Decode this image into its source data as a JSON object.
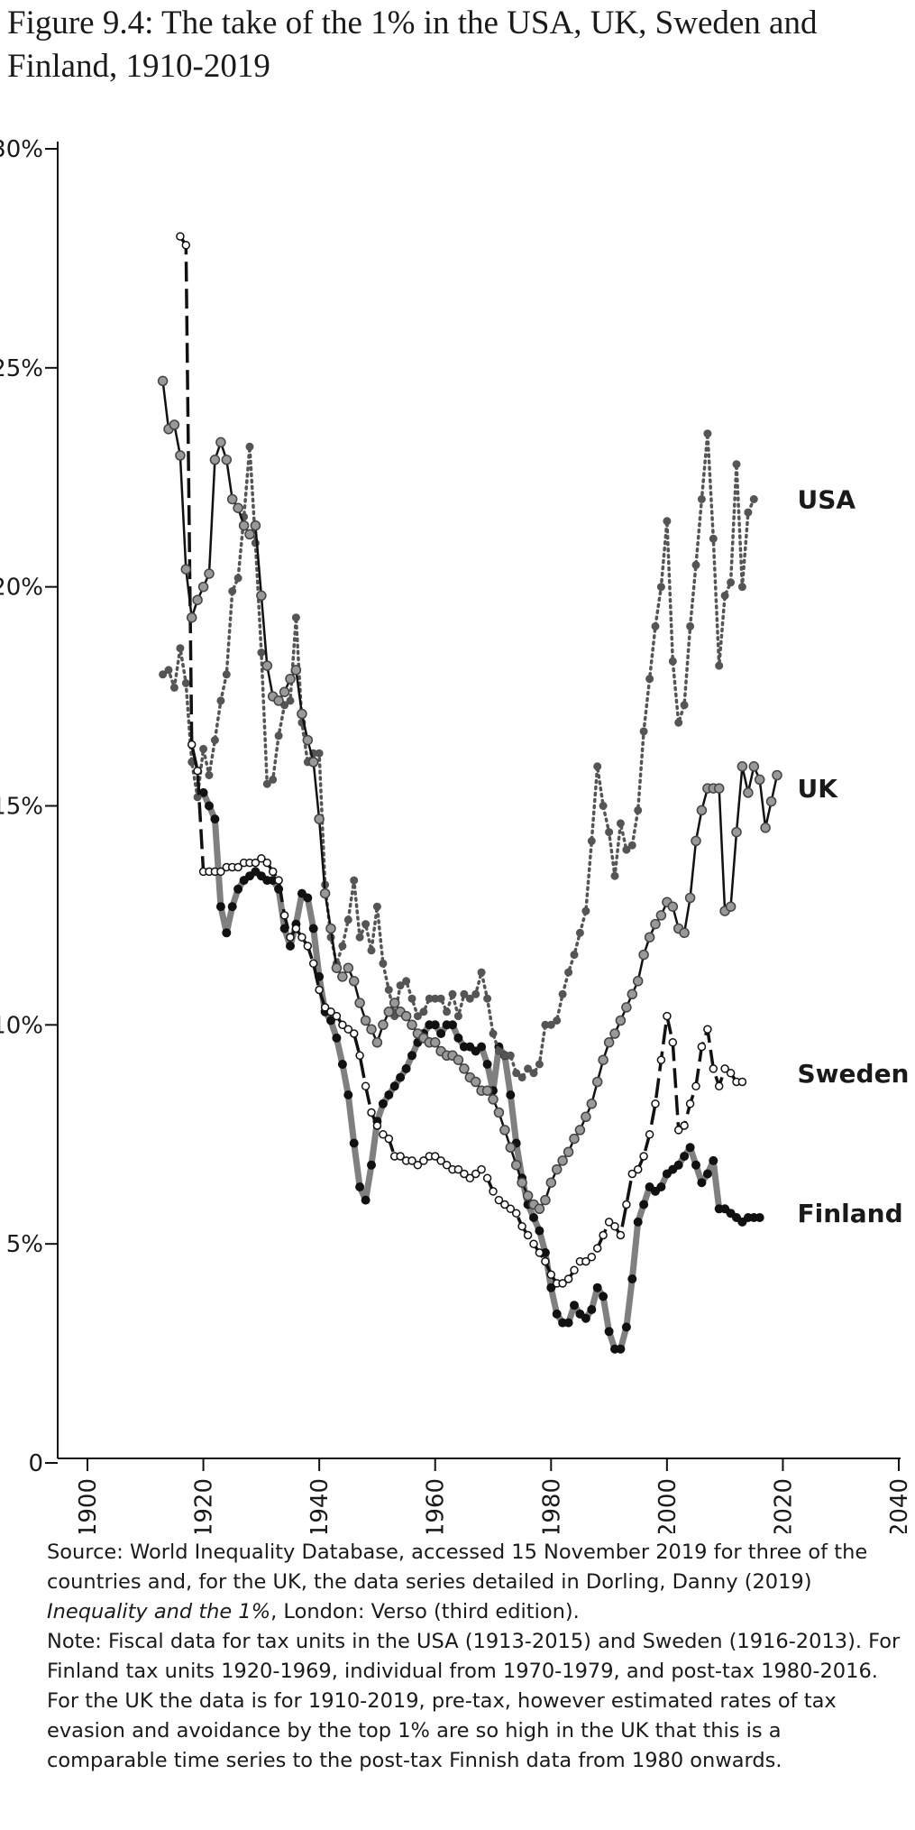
{
  "title": "Figure 9.4: The take of the 1% in the USA, UK, Sweden and Finland, 1910-2019",
  "notes": {
    "source_prefix": "Source: World Inequality Database, accessed 15 November 2019 for three of the countries and, for the UK, the data series detailed in Dorling, Danny (2019) ",
    "source_book": "Inequality and the 1%",
    "source_suffix": ", London: Verso (third edition).",
    "note": "Note: Fiscal data for tax units in the USA (1913-2015) and Sweden (1916-2013). For Finland tax units 1920-1969, individual from 1970-1979, and post-tax 1980-2016. For the UK the data is for 1910-2019, pre-tax, however estimated rates of tax evasion and avoidance by the top 1% are so high in the UK that this is a comparable time series to the post-tax Finnish data from 1980 onwards."
  },
  "chart_data": {
    "type": "line",
    "title": "",
    "xlabel": "",
    "ylabel": "",
    "xlim": [
      1900,
      2040
    ],
    "ylim": [
      0,
      30
    ],
    "x_ticks": [
      "1900",
      "1920",
      "1940",
      "1960",
      "1980",
      "2000",
      "2020",
      "2040"
    ],
    "y_ticks": [
      "0",
      "5%",
      "10%",
      "15%",
      "20%",
      "25%",
      "30%"
    ],
    "grid": false,
    "legend": "direct labels at line ends",
    "series": [
      {
        "name": "USA",
        "style": "dotted",
        "color": "#555555",
        "x": [
          1913,
          1914,
          1915,
          1916,
          1917,
          1918,
          1919,
          1920,
          1921,
          1922,
          1923,
          1924,
          1925,
          1926,
          1927,
          1928,
          1929,
          1930,
          1931,
          1932,
          1933,
          1934,
          1935,
          1936,
          1937,
          1938,
          1939,
          1940,
          1941,
          1942,
          1943,
          1944,
          1945,
          1946,
          1947,
          1948,
          1949,
          1950,
          1951,
          1952,
          1953,
          1954,
          1955,
          1956,
          1957,
          1958,
          1959,
          1960,
          1961,
          1962,
          1963,
          1964,
          1965,
          1966,
          1967,
          1968,
          1969,
          1970,
          1971,
          1972,
          1973,
          1974,
          1975,
          1976,
          1977,
          1978,
          1979,
          1980,
          1981,
          1982,
          1983,
          1984,
          1985,
          1986,
          1987,
          1988,
          1989,
          1990,
          1991,
          1992,
          1993,
          1994,
          1995,
          1996,
          1997,
          1998,
          1999,
          2000,
          2001,
          2002,
          2003,
          2004,
          2005,
          2006,
          2007,
          2008,
          2009,
          2010,
          2011,
          2012,
          2013,
          2014,
          2015
        ],
        "y": [
          18.0,
          18.1,
          17.7,
          18.6,
          17.8,
          16.0,
          15.2,
          16.3,
          15.7,
          16.5,
          17.4,
          18.0,
          19.9,
          20.2,
          21.6,
          23.2,
          21.0,
          18.5,
          15.5,
          15.6,
          16.6,
          17.3,
          17.4,
          19.3,
          16.9,
          16.0,
          16.2,
          16.2,
          13.2,
          12.0,
          11.4,
          11.8,
          12.4,
          13.3,
          12.0,
          12.3,
          11.7,
          12.7,
          11.4,
          10.8,
          10.2,
          10.9,
          11.0,
          10.6,
          10.2,
          10.3,
          10.6,
          10.6,
          10.6,
          10.3,
          10.7,
          10.2,
          10.7,
          10.6,
          10.7,
          11.2,
          10.6,
          9.8,
          9.4,
          9.3,
          9.3,
          8.9,
          8.8,
          9.0,
          8.9,
          9.1,
          10.0,
          10.0,
          10.1,
          10.7,
          11.2,
          11.6,
          12.1,
          12.6,
          14.2,
          15.9,
          15.0,
          14.4,
          13.4,
          14.6,
          14.0,
          14.1,
          14.9,
          16.7,
          17.9,
          19.1,
          20.0,
          21.5,
          18.3,
          16.9,
          17.3,
          19.1,
          20.5,
          22.0,
          23.5,
          21.1,
          18.2,
          19.8,
          20.1,
          22.8,
          20.0,
          21.7,
          22.0
        ]
      },
      {
        "name": "UK",
        "style": "solid",
        "color": "#111111",
        "x": [
          1913,
          1914,
          1915,
          1916,
          1917,
          1918,
          1919,
          1920,
          1921,
          1922,
          1923,
          1924,
          1925,
          1926,
          1927,
          1928,
          1929,
          1930,
          1931,
          1932,
          1933,
          1934,
          1935,
          1936,
          1937,
          1938,
          1939,
          1940,
          1941,
          1942,
          1943,
          1944,
          1945,
          1946,
          1947,
          1948,
          1949,
          1950,
          1951,
          1952,
          1953,
          1954,
          1955,
          1956,
          1957,
          1958,
          1959,
          1960,
          1961,
          1962,
          1963,
          1964,
          1965,
          1966,
          1967,
          1968,
          1969,
          1970,
          1971,
          1972,
          1973,
          1974,
          1975,
          1976,
          1977,
          1978,
          1979,
          1980,
          1981,
          1982,
          1983,
          1984,
          1985,
          1986,
          1987,
          1988,
          1989,
          1990,
          1991,
          1992,
          1993,
          1994,
          1995,
          1996,
          1997,
          1998,
          1999,
          2000,
          2001,
          2002,
          2003,
          2004,
          2005,
          2006,
          2007,
          2008,
          2009,
          2010,
          2011,
          2012,
          2013,
          2014,
          2015,
          2016,
          2017,
          2018,
          2019
        ],
        "y": [
          24.7,
          23.6,
          23.7,
          23.0,
          20.4,
          19.3,
          19.7,
          20.0,
          20.3,
          22.9,
          23.3,
          22.9,
          22.0,
          21.8,
          21.4,
          21.2,
          21.4,
          19.8,
          18.2,
          17.5,
          17.4,
          17.6,
          17.9,
          18.1,
          17.1,
          16.5,
          16.0,
          14.7,
          13.0,
          12.2,
          11.3,
          11.1,
          11.3,
          11.0,
          10.5,
          10.1,
          9.9,
          9.6,
          10.0,
          10.3,
          10.5,
          10.3,
          10.2,
          10.0,
          9.8,
          9.7,
          9.6,
          9.6,
          9.4,
          9.3,
          9.3,
          9.2,
          9.0,
          8.8,
          8.7,
          8.5,
          8.5,
          8.3,
          8.0,
          7.6,
          7.2,
          6.8,
          6.4,
          6.1,
          5.9,
          5.8,
          6.0,
          6.4,
          6.7,
          6.9,
          7.1,
          7.4,
          7.6,
          7.9,
          8.2,
          8.7,
          9.2,
          9.6,
          9.8,
          10.1,
          10.4,
          10.7,
          11.0,
          11.6,
          12.0,
          12.3,
          12.5,
          12.8,
          12.7,
          12.2,
          12.1,
          12.9,
          14.2,
          14.9,
          15.4,
          15.4,
          15.4,
          12.6,
          12.7,
          14.4,
          15.9,
          15.3,
          15.9,
          15.6,
          14.5,
          15.1,
          15.7
        ]
      },
      {
        "name": "Sweden",
        "style": "dashed",
        "color": "#111111",
        "x": [
          1916,
          1917,
          1918,
          1919,
          1920,
          1921,
          1922,
          1923,
          1924,
          1925,
          1926,
          1927,
          1928,
          1929,
          1930,
          1931,
          1932,
          1933,
          1934,
          1935,
          1936,
          1937,
          1938,
          1939,
          1940,
          1941,
          1942,
          1943,
          1944,
          1945,
          1946,
          1947,
          1948,
          1949,
          1950,
          1951,
          1952,
          1953,
          1954,
          1955,
          1956,
          1957,
          1958,
          1959,
          1960,
          1961,
          1962,
          1963,
          1964,
          1965,
          1966,
          1967,
          1968,
          1969,
          1970,
          1971,
          1972,
          1973,
          1974,
          1975,
          1976,
          1977,
          1978,
          1979,
          1980,
          1981,
          1982,
          1983,
          1984,
          1985,
          1986,
          1987,
          1988,
          1989,
          1990,
          1991,
          1992,
          1993,
          1994,
          1995,
          1996,
          1997,
          1998,
          1999,
          2000,
          2001,
          2002,
          2003,
          2004,
          2005,
          2006,
          2007,
          2008,
          2009,
          2010,
          2011,
          2012,
          2013
        ],
        "y": [
          28.0,
          27.8,
          16.4,
          15.8,
          13.5,
          13.5,
          13.5,
          13.5,
          13.6,
          13.6,
          13.6,
          13.7,
          13.7,
          13.7,
          13.8,
          13.7,
          13.5,
          13.3,
          12.5,
          12.0,
          12.2,
          12.0,
          11.8,
          11.4,
          10.8,
          10.4,
          10.3,
          10.2,
          10.0,
          9.9,
          9.8,
          9.3,
          8.6,
          8.0,
          7.7,
          7.5,
          7.4,
          7.0,
          7.0,
          6.9,
          6.9,
          6.8,
          6.9,
          7.0,
          7.0,
          6.9,
          6.8,
          6.7,
          6.7,
          6.6,
          6.5,
          6.6,
          6.7,
          6.5,
          6.2,
          6.0,
          5.9,
          5.8,
          5.7,
          5.4,
          5.2,
          5.0,
          4.8,
          4.6,
          4.3,
          4.1,
          4.1,
          4.2,
          4.4,
          4.6,
          4.6,
          4.7,
          4.9,
          5.2,
          5.5,
          5.4,
          5.2,
          5.9,
          6.6,
          6.7,
          7.0,
          7.5,
          8.2,
          9.2,
          10.2,
          9.6,
          7.6,
          7.7,
          8.2,
          8.6,
          9.5,
          9.9,
          9.0,
          8.6,
          9.0,
          8.9,
          8.7,
          8.7
        ]
      },
      {
        "name": "Finland",
        "style": "thick solid",
        "color": "#777777",
        "x": [
          1920,
          1921,
          1922,
          1923,
          1924,
          1925,
          1926,
          1927,
          1928,
          1929,
          1930,
          1931,
          1932,
          1933,
          1934,
          1935,
          1936,
          1937,
          1938,
          1939,
          1940,
          1941,
          1942,
          1943,
          1944,
          1945,
          1946,
          1947,
          1948,
          1949,
          1950,
          1951,
          1952,
          1953,
          1954,
          1955,
          1956,
          1957,
          1958,
          1959,
          1960,
          1961,
          1962,
          1963,
          1964,
          1965,
          1966,
          1967,
          1968,
          1969,
          1970,
          1971,
          1972,
          1973,
          1974,
          1975,
          1976,
          1977,
          1978,
          1979,
          1980,
          1981,
          1982,
          1983,
          1984,
          1985,
          1986,
          1987,
          1988,
          1989,
          1990,
          1991,
          1992,
          1993,
          1994,
          1995,
          1996,
          1997,
          1998,
          1999,
          2000,
          2001,
          2002,
          2003,
          2004,
          2005,
          2006,
          2007,
          2008,
          2009,
          2010,
          2011,
          2012,
          2013,
          2014,
          2015,
          2016
        ],
        "y": [
          15.3,
          15.0,
          14.7,
          12.7,
          12.1,
          12.7,
          13.1,
          13.3,
          13.4,
          13.5,
          13.4,
          13.3,
          13.3,
          13.1,
          12.2,
          11.8,
          12.3,
          13.0,
          12.9,
          12.2,
          11.1,
          10.3,
          10.1,
          9.7,
          9.1,
          8.4,
          7.3,
          6.3,
          6.0,
          6.8,
          7.8,
          8.2,
          8.4,
          8.6,
          8.8,
          9.0,
          9.3,
          9.6,
          9.8,
          10.0,
          10.0,
          9.8,
          10.0,
          10.0,
          9.7,
          9.5,
          9.5,
          9.4,
          9.5,
          9.1,
          8.5,
          9.5,
          9.3,
          8.4,
          7.3,
          6.5,
          5.9,
          5.6,
          5.3,
          4.8,
          4.0,
          3.4,
          3.2,
          3.2,
          3.6,
          3.4,
          3.3,
          3.5,
          4.0,
          3.8,
          3.0,
          2.6,
          2.6,
          3.1,
          4.2,
          5.5,
          5.9,
          6.3,
          6.2,
          6.3,
          6.6,
          6.7,
          6.8,
          7.0,
          7.2,
          6.8,
          6.4,
          6.6,
          6.9,
          5.8,
          5.8,
          5.7,
          5.6,
          5.5,
          5.6,
          5.6,
          5.6
        ]
      }
    ]
  }
}
